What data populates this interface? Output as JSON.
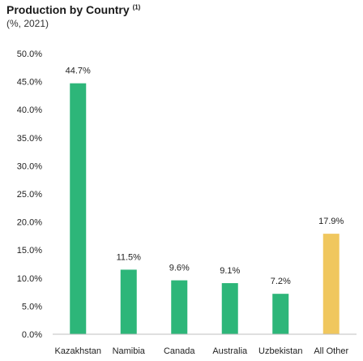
{
  "header": {
    "title": "Production by Country",
    "title_note": "(1)",
    "subtitle": "(%, 2021)"
  },
  "colors": {
    "bar_default": "#2db679",
    "bar_other": "#f0c75e",
    "axis": "#bfbfbf",
    "text": "#222222"
  },
  "chart_data": {
    "type": "bar",
    "title": "Production by Country",
    "subtitle": "(%, 2021)",
    "categories": [
      "Kazakhstan",
      "Namibia",
      "Canada",
      "Australia",
      "Uzbekistan",
      "All Other"
    ],
    "values": [
      44.7,
      11.5,
      9.6,
      9.1,
      7.2,
      17.9
    ],
    "data_labels": [
      "44.7%",
      "11.5%",
      "9.6%",
      "9.1%",
      "7.2%",
      "17.9%"
    ],
    "bar_colors": [
      "#2db679",
      "#2db679",
      "#2db679",
      "#2db679",
      "#2db679",
      "#f0c75e"
    ],
    "yticks": [
      "0.0%",
      "5.0%",
      "10.0%",
      "15.0%",
      "20.0%",
      "25.0%",
      "30.0%",
      "35.0%",
      "40.0%",
      "45.0%",
      "50.0%"
    ],
    "ylim": [
      0,
      50
    ],
    "grid": false,
    "legend": "none"
  }
}
